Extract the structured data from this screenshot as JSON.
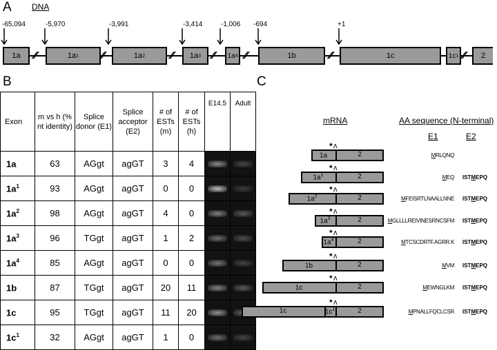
{
  "panel_a": {
    "letter": "A",
    "dna_label": "DNA",
    "positions": [
      "-65,094",
      "-5,970",
      "-3,991",
      "-3,414",
      "-1,006",
      "-694",
      "+1"
    ],
    "exons": [
      "1a",
      "1a",
      "1a",
      "1a",
      "1a",
      "1b",
      "1c",
      "1c",
      "2"
    ],
    "exon_sups": [
      "",
      "1",
      "2",
      "3",
      "4",
      "",
      "",
      "1",
      ""
    ]
  },
  "panel_b": {
    "letter": "B",
    "headers": {
      "exon": "Exon",
      "mvh": "m vs h (% nt identity)",
      "donor": "Splice donor (E1)",
      "acceptor": "Splice acceptor (E2)",
      "ests_m": "# of ESTs (m)",
      "ests_h": "# of ESTs (h)",
      "e145": "E14.5",
      "adult": "Adult"
    },
    "rows": [
      {
        "exon": "1a",
        "sup": "",
        "mvh": "63",
        "donor": "AGgt",
        "acceptor": "agGT",
        "m": "3",
        "h": "4",
        "e145": 0.55,
        "adult": 0.2
      },
      {
        "exon": "1a",
        "sup": "1",
        "mvh": "93",
        "donor": "AGgt",
        "acceptor": "agGT",
        "m": "0",
        "h": "0",
        "e145": 0.8,
        "adult": 0.15
      },
      {
        "exon": "1a",
        "sup": "2",
        "mvh": "98",
        "donor": "AGgt",
        "acceptor": "agGT",
        "m": "4",
        "h": "0",
        "e145": 0.5,
        "adult": 0.3
      },
      {
        "exon": "1a",
        "sup": "3",
        "mvh": "96",
        "donor": "TGgt",
        "acceptor": "agGT",
        "m": "1",
        "h": "2",
        "e145": 0.4,
        "adult": 0.25
      },
      {
        "exon": "1a",
        "sup": "4",
        "mvh": "85",
        "donor": "AGgt",
        "acceptor": "agGT",
        "m": "0",
        "h": "0",
        "e145": 0.45,
        "adult": 0.2
      },
      {
        "exon": "1b",
        "sup": "",
        "mvh": "87",
        "donor": "TGgt",
        "acceptor": "agGT",
        "m": "20",
        "h": "11",
        "e145": 0.5,
        "adult": 0.3
      },
      {
        "exon": "1c",
        "sup": "",
        "mvh": "95",
        "donor": "TGgt",
        "acceptor": "agGT",
        "m": "11",
        "h": "20",
        "e145": 0.6,
        "adult": 0.35
      },
      {
        "exon": "1c",
        "sup": "1",
        "mvh": "32",
        "donor": "AGgt",
        "acceptor": "agGT",
        "m": "1",
        "h": "0",
        "e145": 0.4,
        "adult": 0.2
      }
    ]
  },
  "panel_c": {
    "letter": "C",
    "mrna_label": "mRNA",
    "aa_label": "AA sequence (N-terminal)",
    "e1_label": "E1",
    "e2_label": "E2",
    "rows": [
      {
        "e1": "1a",
        "sup": "",
        "e2": "2",
        "aa1": "MRLQNQ",
        "aa2": ""
      },
      {
        "e1": "1a",
        "sup": "1",
        "e2": "2",
        "aa1": "MEQ",
        "aa2": "ISTMEPQ"
      },
      {
        "e1": "1a",
        "sup": "2",
        "e2": "2",
        "aa1": "MFEISRTLNAALLNNE",
        "aa2": "ISTMEPQ"
      },
      {
        "e1": "1a",
        "sup": "3",
        "e2": "2",
        "aa1": "MGLLLLREIVINESRNCSFM",
        "aa2": "ISTMEPQ"
      },
      {
        "e1": "1a",
        "sup": "4",
        "e2": "2",
        "aa1": "MTCSCDRTF.AGRR.K",
        "aa2": "ISTMEPQ"
      },
      {
        "e1": "1b",
        "sup": "",
        "e2": "2",
        "aa1": "MVM",
        "aa2": "ISTMEPQ"
      },
      {
        "e1": "1c",
        "sup": "",
        "e2": "2",
        "aa1": "MEWNGLKM",
        "aa2": "ISTMEPQ"
      },
      {
        "e1": "1c",
        "e1b": "1c",
        "sup": "1",
        "e2": "2",
        "aa1": "MPNALLFQCLCSR",
        "aa2": "ISTMEPQ"
      }
    ]
  }
}
